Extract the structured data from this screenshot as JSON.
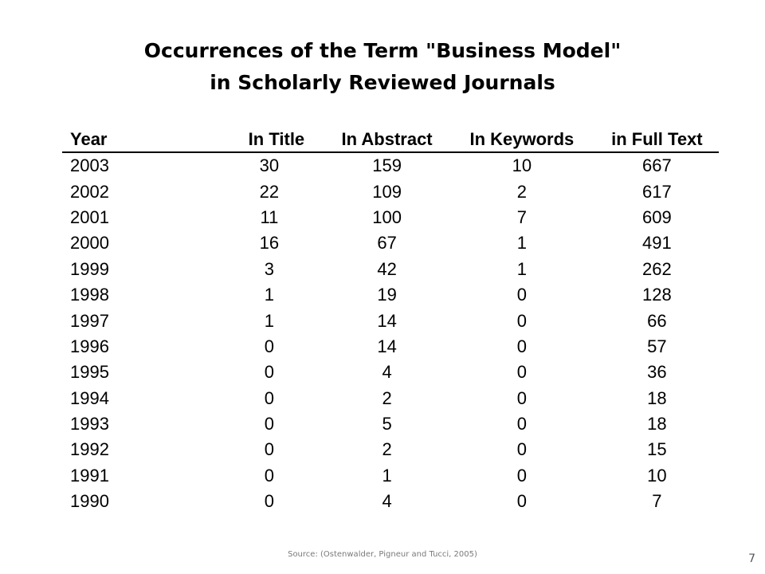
{
  "slide": {
    "title_line1": "Occurrences of the Term \"Business Model\"",
    "title_line2": "in Scholarly Reviewed Journals",
    "source": "Source: (Ostenwalder, Pigneur and  Tucci, 2005)",
    "page_number": "7"
  },
  "table": {
    "headers": [
      "Year",
      "In Title",
      "In Abstract",
      "In Keywords",
      "in Full Text"
    ],
    "rows": [
      [
        "2003",
        "30",
        "159",
        "10",
        "667"
      ],
      [
        "2002",
        "22",
        "109",
        "2",
        "617"
      ],
      [
        "2001",
        "11",
        "100",
        "7",
        "609"
      ],
      [
        "2000",
        "16",
        "67",
        "1",
        "491"
      ],
      [
        "1999",
        "3",
        "42",
        "1",
        "262"
      ],
      [
        "1998",
        "1",
        "19",
        "0",
        "128"
      ],
      [
        "1997",
        "1",
        "14",
        "0",
        "66"
      ],
      [
        "1996",
        "0",
        "14",
        "0",
        "57"
      ],
      [
        "1995",
        "0",
        "4",
        "0",
        "36"
      ],
      [
        "1994",
        "0",
        "2",
        "0",
        "18"
      ],
      [
        "1993",
        "0",
        "5",
        "0",
        "18"
      ],
      [
        "1992",
        "0",
        "2",
        "0",
        "15"
      ],
      [
        "1991",
        "0",
        "1",
        "0",
        "10"
      ],
      [
        "1990",
        "0",
        "4",
        "0",
        "7"
      ]
    ]
  }
}
